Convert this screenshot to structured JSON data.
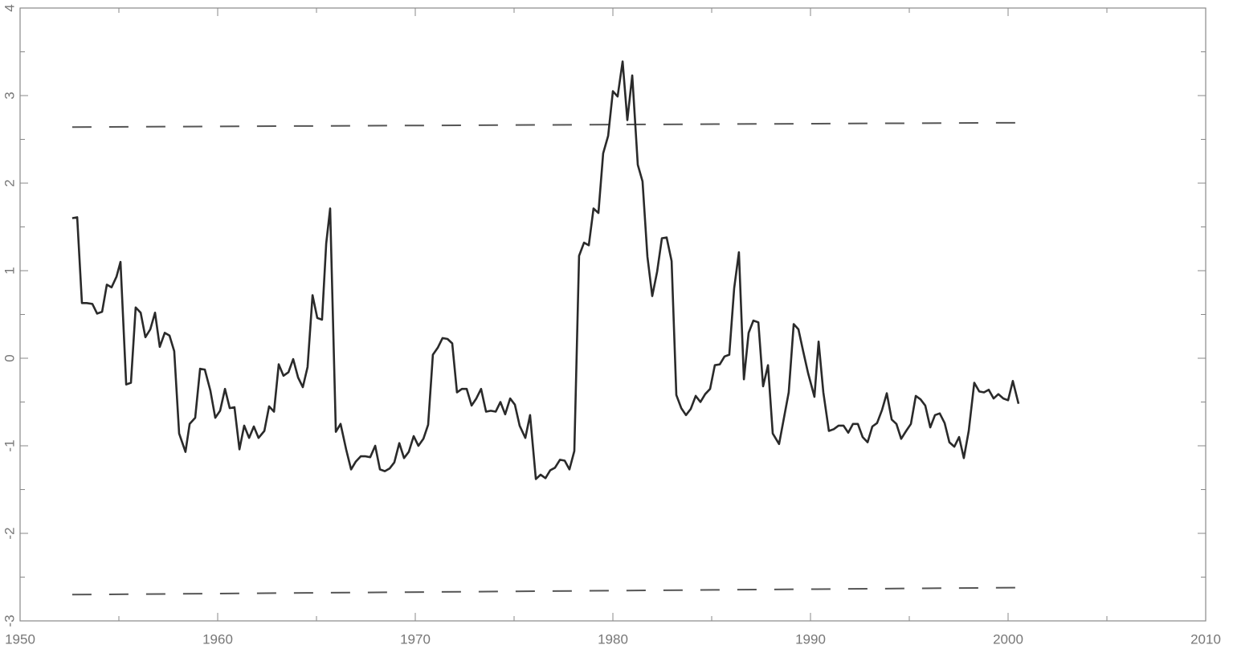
{
  "chart_data": {
    "type": "line",
    "xlim": [
      1950,
      2010
    ],
    "xticks": [
      1950,
      1960,
      1970,
      1980,
      1990,
      2000,
      2010
    ],
    "xminorticks": [
      1955,
      1965,
      1975,
      1985,
      1995,
      2005
    ],
    "ylim": [
      -3,
      4
    ],
    "yticks": [
      -3,
      -2,
      -1,
      0,
      1,
      2,
      3,
      4
    ],
    "yminorticks": [
      -2.5,
      -1.5,
      -0.5,
      0.5,
      1.5,
      2.5,
      3.5
    ],
    "x": [
      1952.64,
      1952.89,
      1953.13,
      1953.37,
      1953.66,
      1953.9,
      1954.15,
      1954.39,
      1954.63,
      1954.88,
      1955.08,
      1955.37,
      1955.61,
      1955.85,
      1956.1,
      1956.34,
      1956.59,
      1956.83,
      1957.07,
      1957.32,
      1957.56,
      1957.8,
      1958.05,
      1958.37,
      1958.58,
      1958.86,
      1959.11,
      1959.35,
      1959.63,
      1959.88,
      1960.12,
      1960.37,
      1960.61,
      1960.85,
      1961.1,
      1961.34,
      1961.59,
      1961.83,
      1962.07,
      1962.36,
      1962.6,
      1962.85,
      1963.09,
      1963.33,
      1963.58,
      1963.82,
      1964.07,
      1964.31,
      1964.55,
      1964.8,
      1965.04,
      1965.28,
      1965.49,
      1965.69,
      1965.98,
      1966.22,
      1966.5,
      1966.75,
      1966.99,
      1967.24,
      1967.48,
      1967.72,
      1967.97,
      1968.21,
      1968.46,
      1968.7,
      1968.94,
      1969.19,
      1969.43,
      1969.67,
      1969.92,
      1970.16,
      1970.41,
      1970.65,
      1970.89,
      1971.14,
      1971.38,
      1971.63,
      1971.87,
      1972.11,
      1972.36,
      1972.6,
      1972.85,
      1973.09,
      1973.33,
      1973.58,
      1973.82,
      1974.07,
      1974.31,
      1974.55,
      1974.8,
      1975.04,
      1975.28,
      1975.57,
      1975.81,
      1976.1,
      1976.34,
      1976.59,
      1976.83,
      1977.07,
      1977.32,
      1977.56,
      1977.8,
      1978.05,
      1978.29,
      1978.54,
      1978.78,
      1979.02,
      1979.27,
      1979.51,
      1979.76,
      1980.0,
      1980.24,
      1980.49,
      1980.73,
      1980.98,
      1981.26,
      1981.5,
      1981.75,
      1981.99,
      1982.24,
      1982.48,
      1982.72,
      1982.97,
      1983.21,
      1983.46,
      1983.7,
      1983.94,
      1984.19,
      1984.43,
      1984.67,
      1984.92,
      1985.16,
      1985.41,
      1985.65,
      1985.89,
      1986.14,
      1986.38,
      1986.63,
      1986.87,
      1987.11,
      1987.36,
      1987.6,
      1987.85,
      1988.09,
      1988.41,
      1988.66,
      1988.9,
      1989.15,
      1989.39,
      1989.63,
      1989.88,
      1990.2,
      1990.41,
      1990.65,
      1990.93,
      1991.18,
      1991.42,
      1991.67,
      1991.91,
      1992.15,
      1992.4,
      1992.64,
      1992.89,
      1993.13,
      1993.37,
      1993.62,
      1993.86,
      1994.11,
      1994.35,
      1994.59,
      1994.84,
      1995.08,
      1995.33,
      1995.57,
      1995.81,
      1996.06,
      1996.3,
      1996.54,
      1996.79,
      1997.03,
      1997.28,
      1997.52,
      1997.76,
      1998.01,
      1998.29,
      1998.54,
      1998.78,
      1999.02,
      1999.27,
      1999.51,
      1999.76,
      2000.0,
      2000.24,
      2000.53
    ],
    "series": [
      {
        "color": "#2a2a2a",
        "values": [
          1.6,
          1.61,
          0.63,
          0.63,
          0.62,
          0.51,
          0.53,
          0.84,
          0.81,
          0.93,
          1.1,
          -0.3,
          -0.28,
          0.58,
          0.52,
          0.24,
          0.33,
          0.52,
          0.13,
          0.29,
          0.26,
          0.08,
          -0.86,
          -1.07,
          -0.75,
          -0.68,
          -0.12,
          -0.13,
          -0.37,
          -0.68,
          -0.6,
          -0.35,
          -0.57,
          -0.56,
          -1.04,
          -0.77,
          -0.91,
          -0.78,
          -0.91,
          -0.83,
          -0.55,
          -0.61,
          -0.07,
          -0.2,
          -0.16,
          -0.01,
          -0.22,
          -0.33,
          -0.1,
          0.72,
          0.46,
          0.44,
          1.31,
          1.71,
          -0.84,
          -0.75,
          -1.04,
          -1.27,
          -1.18,
          -1.12,
          -1.12,
          -1.13,
          -1.0,
          -1.27,
          -1.29,
          -1.26,
          -1.19,
          -0.97,
          -1.14,
          -1.07,
          -0.89,
          -1.0,
          -0.92,
          -0.76,
          0.04,
          0.12,
          0.23,
          0.22,
          0.17,
          -0.39,
          -0.35,
          -0.35,
          -0.54,
          -0.46,
          -0.35,
          -0.61,
          -0.6,
          -0.61,
          -0.5,
          -0.64,
          -0.46,
          -0.53,
          -0.77,
          -0.91,
          -0.65,
          -1.38,
          -1.33,
          -1.37,
          -1.28,
          -1.25,
          -1.16,
          -1.17,
          -1.27,
          -1.06,
          1.17,
          1.32,
          1.29,
          1.71,
          1.66,
          2.34,
          2.54,
          3.05,
          2.99,
          3.39,
          2.72,
          3.23,
          2.21,
          2.02,
          1.16,
          0.71,
          0.99,
          1.37,
          1.38,
          1.11,
          -0.42,
          -0.57,
          -0.65,
          -0.58,
          -0.43,
          -0.5,
          -0.41,
          -0.35,
          -0.08,
          -0.07,
          0.02,
          0.04,
          0.8,
          1.21,
          -0.24,
          0.29,
          0.43,
          0.41,
          -0.32,
          -0.08,
          -0.86,
          -0.98,
          -0.68,
          -0.39,
          0.39,
          0.33,
          0.08,
          -0.17,
          -0.44,
          0.19,
          -0.39,
          -0.83,
          -0.81,
          -0.77,
          -0.77,
          -0.85,
          -0.75,
          -0.75,
          -0.9,
          -0.96,
          -0.78,
          -0.74,
          -0.59,
          -0.4,
          -0.7,
          -0.75,
          -0.92,
          -0.83,
          -0.75,
          -0.43,
          -0.47,
          -0.54,
          -0.79,
          -0.65,
          -0.63,
          -0.74,
          -0.96,
          -1.01,
          -0.9,
          -1.14,
          -0.83,
          -0.28,
          -0.38,
          -0.39,
          -0.36,
          -0.46,
          -0.41,
          -0.46,
          -0.48,
          -0.26,
          -0.52
        ]
      }
    ],
    "reference_lines": [
      {
        "color": "#555555",
        "style": "dashed",
        "x": [
          1952.64,
          2000.53
        ],
        "values": [
          2.64,
          2.69
        ]
      },
      {
        "color": "#555555",
        "style": "dashed",
        "x": [
          1952.64,
          2000.53
        ],
        "values": [
          -2.7,
          -2.62
        ]
      }
    ]
  }
}
